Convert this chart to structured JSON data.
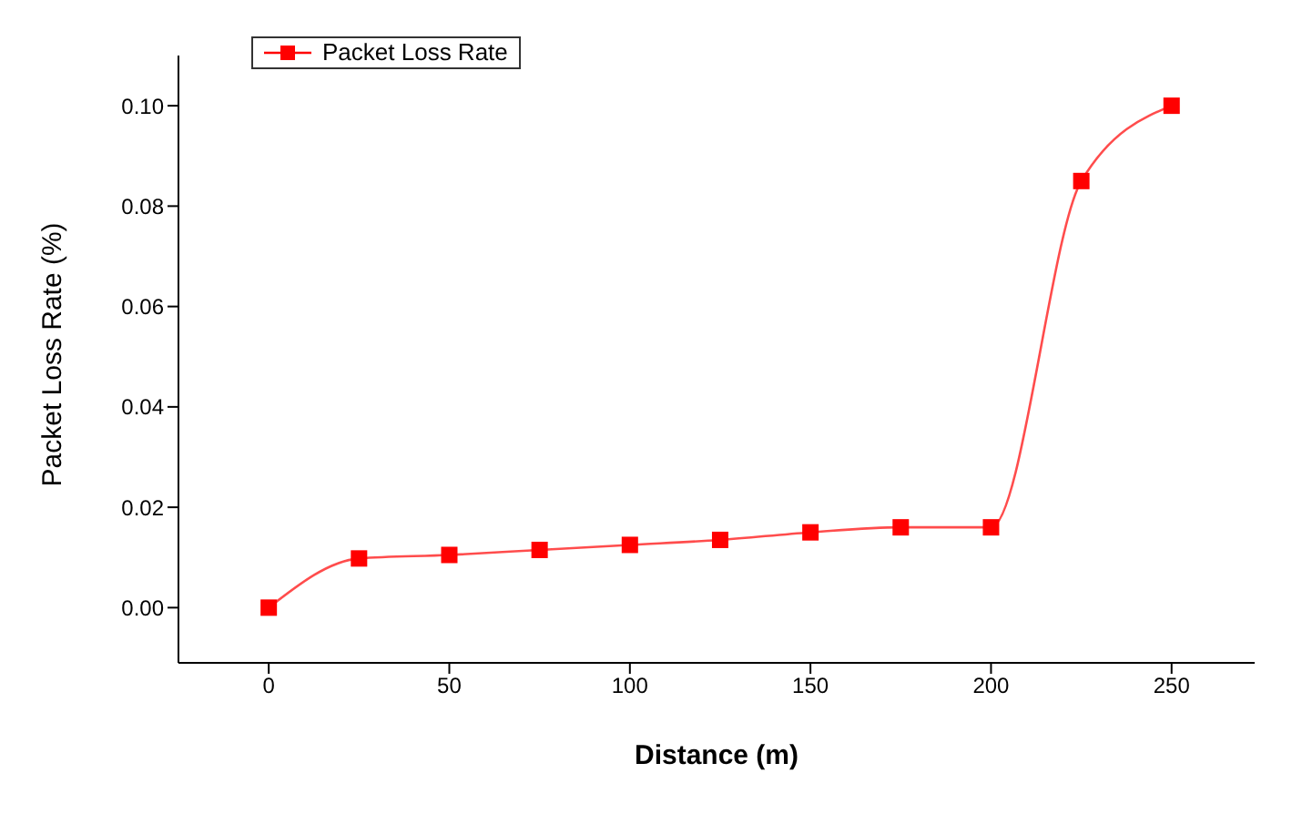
{
  "chart_data": {
    "type": "line",
    "xlabel": "Distance (m)",
    "ylabel": "Packet Loss Rate (%)",
    "x": [
      0,
      25,
      50,
      75,
      100,
      125,
      150,
      175,
      200,
      225,
      250
    ],
    "series": [
      {
        "name": "Packet Loss Rate",
        "color": "#ff0000",
        "values": [
          0,
          0.0098,
          0.0105,
          0.0115,
          0.0125,
          0.0135,
          0.015,
          0.016,
          0.016,
          0.085,
          0.1
        ]
      }
    ],
    "xlim": [
      -25,
      273
    ],
    "xticks": [
      0,
      50,
      100,
      150,
      200,
      250
    ],
    "ylim": [
      -0.011,
      0.11
    ],
    "yticks": [
      {
        "value": 0,
        "label": "0.00"
      },
      {
        "value": 0.02,
        "label": "0.02"
      },
      {
        "value": 0.04,
        "label": "0.04"
      },
      {
        "value": 0.06,
        "label": "0.06"
      },
      {
        "value": 0.08,
        "label": "0.08"
      },
      {
        "value": 0.1,
        "label": "0.10"
      }
    ],
    "grid": false,
    "legend": "top left",
    "marker": "square",
    "line_style": "solid"
  }
}
